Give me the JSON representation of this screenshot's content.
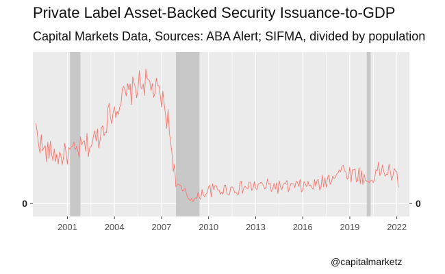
{
  "title": "Private Label Asset-Backed Security Issuance-to-GDP",
  "subtitle": "Capital Markets Data, Sources: ABA Alert; SIFMA, divided by population",
  "credit": "@capitalmarketz",
  "chart_data": {
    "type": "line",
    "line_color": "#F8766D",
    "panel_color": "#EBEBEB",
    "recession_color": "#C8C8C8",
    "x_ticks": [
      2001,
      2004,
      2007,
      2010,
      2013,
      2016,
      2019,
      2022
    ],
    "y_ticks": [
      {
        "value": 0,
        "label": "0"
      }
    ],
    "y_axis_both_sides": true,
    "xlim": [
      1998.8,
      2022.8
    ],
    "ylim": [
      -0.12,
      1.4
    ],
    "grid": true,
    "recessions": [
      [
        2001.17,
        2001.83
      ],
      [
        2007.92,
        2009.42
      ],
      [
        2020.08,
        2020.33
      ]
    ],
    "anchors": [
      [
        1999.0,
        0.68
      ],
      [
        1999.5,
        0.48
      ],
      [
        2000.0,
        0.47
      ],
      [
        2000.5,
        0.43
      ],
      [
        2001.0,
        0.46
      ],
      [
        2001.5,
        0.47
      ],
      [
        2002.0,
        0.52
      ],
      [
        2002.5,
        0.55
      ],
      [
        2003.0,
        0.63
      ],
      [
        2003.5,
        0.78
      ],
      [
        2004.0,
        0.88
      ],
      [
        2004.5,
        0.97
      ],
      [
        2005.0,
        1.02
      ],
      [
        2005.5,
        1.1
      ],
      [
        2006.0,
        1.12
      ],
      [
        2006.5,
        1.06
      ],
      [
        2007.0,
        0.97
      ],
      [
        2007.4,
        0.78
      ],
      [
        2007.7,
        0.45
      ],
      [
        2007.9,
        0.22
      ],
      [
        2008.2,
        0.12
      ],
      [
        2008.5,
        0.09
      ],
      [
        2008.8,
        0.05
      ],
      [
        2009.2,
        0.03
      ],
      [
        2009.5,
        0.09
      ],
      [
        2010.0,
        0.12
      ],
      [
        2011.0,
        0.13
      ],
      [
        2012.0,
        0.14
      ],
      [
        2013.0,
        0.16
      ],
      [
        2014.0,
        0.16
      ],
      [
        2015.0,
        0.15
      ],
      [
        2016.0,
        0.16
      ],
      [
        2017.0,
        0.17
      ],
      [
        2017.6,
        0.22
      ],
      [
        2018.0,
        0.28
      ],
      [
        2018.5,
        0.31
      ],
      [
        2019.0,
        0.28
      ],
      [
        2019.7,
        0.26
      ],
      [
        2020.2,
        0.19
      ],
      [
        2020.6,
        0.28
      ],
      [
        2021.0,
        0.31
      ],
      [
        2021.5,
        0.29
      ],
      [
        2022.0,
        0.24
      ],
      [
        2022.1,
        0.14
      ]
    ],
    "noise_amplitude": 0.16,
    "months_per_year": 12
  }
}
